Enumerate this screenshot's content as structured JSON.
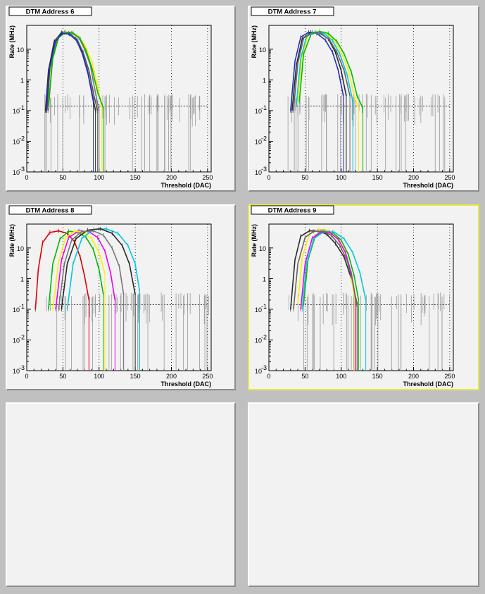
{
  "canvas": {
    "background": "#c0c0c0",
    "pad_fill": "#f2f2f2",
    "selected_border": "#e8e83c"
  },
  "pads": [
    {
      "title": "DTM Address 6",
      "selected": false,
      "has_plot": true
    },
    {
      "title": "DTM Address 7",
      "selected": false,
      "has_plot": true
    },
    {
      "title": "DTM Address 8",
      "selected": false,
      "has_plot": true
    },
    {
      "title": "DTM Address 9",
      "selected": true,
      "has_plot": true
    },
    {
      "title": "",
      "selected": false,
      "has_plot": false
    },
    {
      "title": "",
      "selected": false,
      "has_plot": false
    }
  ],
  "axis": {
    "x_ticks": [
      "0",
      "50",
      "100",
      "150",
      "200",
      "250"
    ],
    "y_tick_main": [
      "1",
      "10"
    ],
    "y_tick_exp": [
      {
        "base": "10",
        "exp": "-3"
      },
      {
        "base": "10",
        "exp": "-2"
      },
      {
        "base": "10",
        "exp": "-1"
      }
    ]
  },
  "chart_data": [
    {
      "type": "line",
      "title": "DTM Address 6",
      "xlabel": "Threshold (DAC)",
      "ylabel": "Rate (MHz)",
      "xlim": [
        0,
        255
      ],
      "ylim": [
        0.001,
        60
      ],
      "yscale": "log",
      "grid": "x-dotted",
      "series": [
        {
          "color": "#ffee00",
          "values": [
            [
              28,
              0.1
            ],
            [
              33,
              3
            ],
            [
              40,
              20
            ],
            [
              50,
              36
            ],
            [
              60,
              36
            ],
            [
              70,
              28
            ],
            [
              80,
              14
            ],
            [
              90,
              4
            ],
            [
              97,
              0.8
            ],
            [
              104,
              0.12
            ]
          ]
        },
        {
          "color": "#2a2a2a",
          "values": [
            [
              26,
              0.1
            ],
            [
              30,
              2
            ],
            [
              38,
              18
            ],
            [
              48,
              35
            ],
            [
              58,
              33
            ],
            [
              68,
              22
            ],
            [
              76,
              9
            ],
            [
              84,
              2
            ],
            [
              90,
              0.4
            ],
            [
              95,
              0.1
            ]
          ]
        },
        {
          "color": "#555555",
          "values": [
            [
              28,
              0.1
            ],
            [
              32,
              2.5
            ],
            [
              40,
              19
            ],
            [
              50,
              34
            ],
            [
              60,
              32
            ],
            [
              70,
              20
            ],
            [
              78,
              8
            ],
            [
              86,
              2
            ],
            [
              93,
              0.3
            ],
            [
              98,
              0.1
            ]
          ]
        },
        {
          "color": "#777777",
          "values": [
            [
              30,
              0.1
            ],
            [
              35,
              4
            ],
            [
              42,
              22
            ],
            [
              52,
              35
            ],
            [
              62,
              34
            ],
            [
              72,
              24
            ],
            [
              80,
              10
            ],
            [
              88,
              3
            ],
            [
              94,
              0.5
            ],
            [
              100,
              0.1
            ]
          ]
        },
        {
          "color": "#00bb00",
          "values": [
            [
              30,
              0.15
            ],
            [
              36,
              5
            ],
            [
              44,
              24
            ],
            [
              54,
              36
            ],
            [
              64,
              34
            ],
            [
              74,
              22
            ],
            [
              82,
              9
            ],
            [
              90,
              2.5
            ],
            [
              98,
              0.4
            ],
            [
              106,
              0.12
            ]
          ]
        },
        {
          "color": "#2030c0",
          "values": [
            [
              27,
              0.1
            ],
            [
              31,
              2
            ],
            [
              39,
              17
            ],
            [
              49,
              33
            ],
            [
              59,
              31
            ],
            [
              69,
              19
            ],
            [
              77,
              7
            ],
            [
              85,
              1.5
            ],
            [
              92,
              0.2
            ]
          ]
        }
      ]
    },
    {
      "type": "line",
      "title": "DTM Address 7",
      "xlabel": "Threshold (DAC)",
      "ylabel": "Rate (MHz)",
      "xlim": [
        0,
        255
      ],
      "ylim": [
        0.001,
        60
      ],
      "yscale": "log",
      "grid": "x-dotted",
      "series": [
        {
          "color": "#2030c0",
          "values": [
            [
              30,
              0.1
            ],
            [
              36,
              4
            ],
            [
              44,
              25
            ],
            [
              55,
              36
            ],
            [
              66,
              33
            ],
            [
              78,
              20
            ],
            [
              88,
              8
            ],
            [
              96,
              2
            ],
            [
              103,
              0.3
            ]
          ]
        },
        {
          "color": "#2a2a2a",
          "values": [
            [
              32,
              0.1
            ],
            [
              38,
              3
            ],
            [
              46,
              22
            ],
            [
              58,
              36
            ],
            [
              70,
              34
            ],
            [
              82,
              22
            ],
            [
              92,
              8
            ],
            [
              100,
              2
            ],
            [
              107,
              0.3
            ]
          ]
        },
        {
          "color": "#ffee00",
          "values": [
            [
              40,
              0.2
            ],
            [
              46,
              6
            ],
            [
              54,
              28
            ],
            [
              66,
              38
            ],
            [
              78,
              34
            ],
            [
              90,
              20
            ],
            [
              100,
              8
            ],
            [
              110,
              2
            ],
            [
              118,
              0.3
            ],
            [
              124,
              0.12
            ]
          ]
        },
        {
          "color": "#00bb00",
          "values": [
            [
              42,
              0.2
            ],
            [
              48,
              7
            ],
            [
              58,
              30
            ],
            [
              70,
              38
            ],
            [
              82,
              33
            ],
            [
              94,
              18
            ],
            [
              104,
              7
            ],
            [
              114,
              1.8
            ],
            [
              122,
              0.3
            ],
            [
              130,
              0.12
            ]
          ]
        },
        {
          "color": "#00c8e0",
          "values": [
            [
              38,
              0.15
            ],
            [
              44,
              5
            ],
            [
              52,
              26
            ],
            [
              64,
              37
            ],
            [
              76,
              33
            ],
            [
              88,
              19
            ],
            [
              98,
              7
            ],
            [
              108,
              1.5
            ],
            [
              116,
              0.2
            ]
          ]
        },
        {
          "color": "#666666",
          "values": [
            [
              34,
              0.1
            ],
            [
              40,
              3.5
            ],
            [
              48,
              23
            ],
            [
              60,
              36
            ],
            [
              72,
              33
            ],
            [
              84,
              20
            ],
            [
              94,
              8
            ],
            [
              104,
              2
            ],
            [
              112,
              0.3
            ]
          ]
        }
      ]
    },
    {
      "type": "line",
      "title": "DTM Address 8",
      "xlabel": "Threshold (DAC)",
      "ylabel": "Rate (MHz)",
      "xlim": [
        0,
        255
      ],
      "ylim": [
        0.001,
        60
      ],
      "yscale": "log",
      "grid": "x-dotted",
      "series": [
        {
          "color": "#dd0000",
          "values": [
            [
              12,
              0.1
            ],
            [
              16,
              2
            ],
            [
              22,
              15
            ],
            [
              32,
              32
            ],
            [
              44,
              36
            ],
            [
              56,
              30
            ],
            [
              66,
              16
            ],
            [
              74,
              5
            ],
            [
              80,
              1.2
            ],
            [
              86,
              0.2
            ]
          ]
        },
        {
          "color": "#00bb00",
          "values": [
            [
              30,
              0.1
            ],
            [
              36,
              3
            ],
            [
              46,
              20
            ],
            [
              58,
              35
            ],
            [
              70,
              33
            ],
            [
              82,
              22
            ],
            [
              92,
              9
            ],
            [
              100,
              2
            ],
            [
              106,
              0.3
            ]
          ]
        },
        {
          "color": "#ee00ee",
          "values": [
            [
              40,
              0.1
            ],
            [
              48,
              4
            ],
            [
              58,
              22
            ],
            [
              72,
              36
            ],
            [
              86,
              34
            ],
            [
              98,
              22
            ],
            [
              108,
              8
            ],
            [
              116,
              1.5
            ],
            [
              122,
              0.2
            ]
          ]
        },
        {
          "color": "#ffee00",
          "values": [
            [
              36,
              0.1
            ],
            [
              44,
              3.5
            ],
            [
              54,
              22
            ],
            [
              66,
              35
            ],
            [
              78,
              33
            ],
            [
              90,
              20
            ],
            [
              100,
              7
            ],
            [
              108,
              1.5
            ]
          ]
        },
        {
          "color": "#00c8e0",
          "values": [
            [
              56,
              0.1
            ],
            [
              64,
              3
            ],
            [
              76,
              20
            ],
            [
              92,
              40
            ],
            [
              110,
              42
            ],
            [
              126,
              30
            ],
            [
              140,
              12
            ],
            [
              150,
              3
            ],
            [
              156,
              0.4
            ]
          ]
        },
        {
          "color": "#2a2a2a",
          "values": [
            [
              48,
              0.1
            ],
            [
              56,
              3
            ],
            [
              68,
              20
            ],
            [
              84,
              38
            ],
            [
              102,
              42
            ],
            [
              118,
              30
            ],
            [
              132,
              12
            ],
            [
              142,
              3
            ],
            [
              150,
              0.3
            ]
          ]
        },
        {
          "color": "#777777",
          "values": [
            [
              44,
              0.1
            ],
            [
              52,
              3
            ],
            [
              62,
              18
            ],
            [
              76,
              34
            ],
            [
              92,
              36
            ],
            [
              106,
              26
            ],
            [
              118,
              10
            ],
            [
              128,
              2.5
            ],
            [
              134,
              0.3
            ]
          ]
        }
      ]
    },
    {
      "type": "line",
      "title": "DTM Address 9",
      "xlabel": "Threshold (DAC)",
      "ylabel": "Rate (MHz)",
      "xlim": [
        0,
        255
      ],
      "ylim": [
        0.001,
        60
      ],
      "yscale": "log",
      "grid": "x-dotted",
      "series": [
        {
          "color": "#2a2a2a",
          "values": [
            [
              30,
              0.1
            ],
            [
              36,
              4
            ],
            [
              44,
              24
            ],
            [
              56,
              36
            ],
            [
              68,
              36
            ],
            [
              80,
              28
            ],
            [
              92,
              14
            ],
            [
              104,
              5
            ],
            [
              114,
              1
            ],
            [
              122,
              0.15
            ]
          ]
        },
        {
          "color": "#ffee00",
          "values": [
            [
              40,
              0.15
            ],
            [
              46,
              5
            ],
            [
              56,
              28
            ],
            [
              70,
              40
            ],
            [
              82,
              38
            ],
            [
              94,
              24
            ],
            [
              104,
              9
            ],
            [
              112,
              2
            ],
            [
              118,
              0.3
            ]
          ]
        },
        {
          "color": "#00bb00",
          "values": [
            [
              48,
              0.15
            ],
            [
              54,
              4
            ],
            [
              64,
              24
            ],
            [
              76,
              36
            ],
            [
              88,
              32
            ],
            [
              100,
              18
            ],
            [
              110,
              6
            ],
            [
              118,
              1.2
            ],
            [
              124,
              0.2
            ]
          ]
        },
        {
          "color": "#00c8e0",
          "values": [
            [
              46,
              0.1
            ],
            [
              52,
              3
            ],
            [
              62,
              20
            ],
            [
              76,
              34
            ],
            [
              90,
              33
            ],
            [
              104,
              20
            ],
            [
              116,
              7
            ],
            [
              126,
              1.5
            ],
            [
              134,
              0.2
            ]
          ]
        },
        {
          "color": "#ee00ee",
          "values": [
            [
              44,
              0.1
            ],
            [
              50,
              3
            ],
            [
              60,
              21
            ],
            [
              72,
              34
            ],
            [
              84,
              32
            ],
            [
              96,
              19
            ],
            [
              106,
              7
            ],
            [
              114,
              1.5
            ],
            [
              120,
              0.2
            ]
          ]
        },
        {
          "color": "#666666",
          "values": [
            [
              34,
              0.1
            ],
            [
              40,
              3
            ],
            [
              50,
              22
            ],
            [
              62,
              35
            ],
            [
              74,
              35
            ],
            [
              86,
              26
            ],
            [
              98,
              12
            ],
            [
              108,
              4
            ],
            [
              116,
              0.8
            ],
            [
              122,
              0.12
            ]
          ]
        }
      ]
    }
  ]
}
